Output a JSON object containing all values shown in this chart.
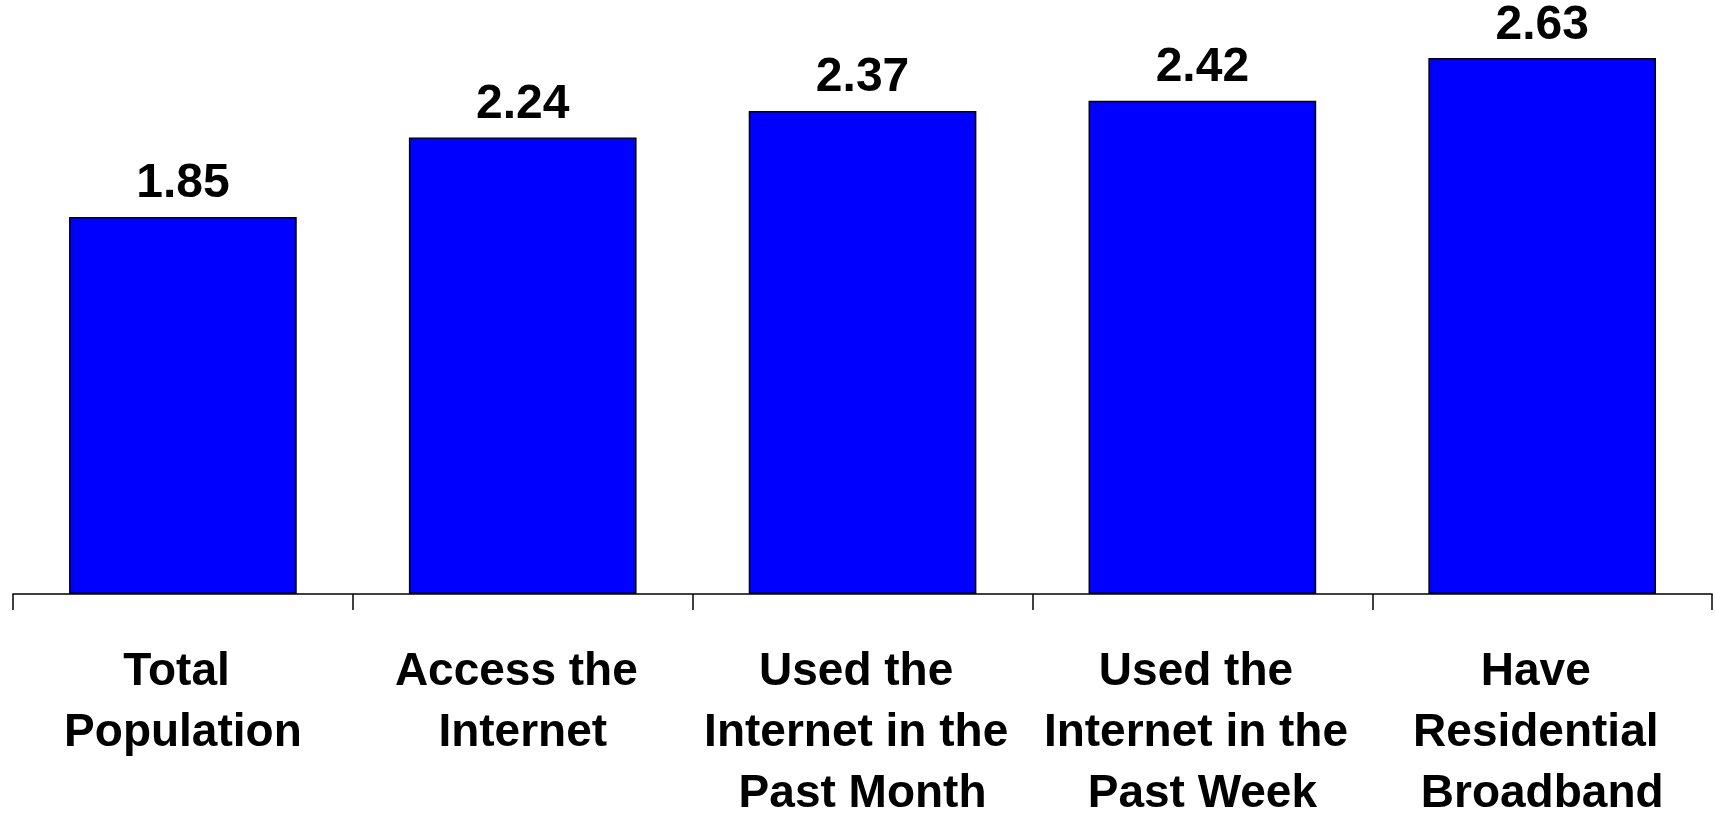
{
  "chart_data": {
    "type": "bar",
    "categories": [
      "Total Population",
      "Access the Internet",
      "Used the Internet in the Past Month",
      "Used the Internet in the Past Week",
      "Have Residential Broadband"
    ],
    "values": [
      1.85,
      2.24,
      2.37,
      2.42,
      2.63
    ],
    "color": "#0000ff",
    "data_labels": true,
    "tick_labels": "x"
  }
}
